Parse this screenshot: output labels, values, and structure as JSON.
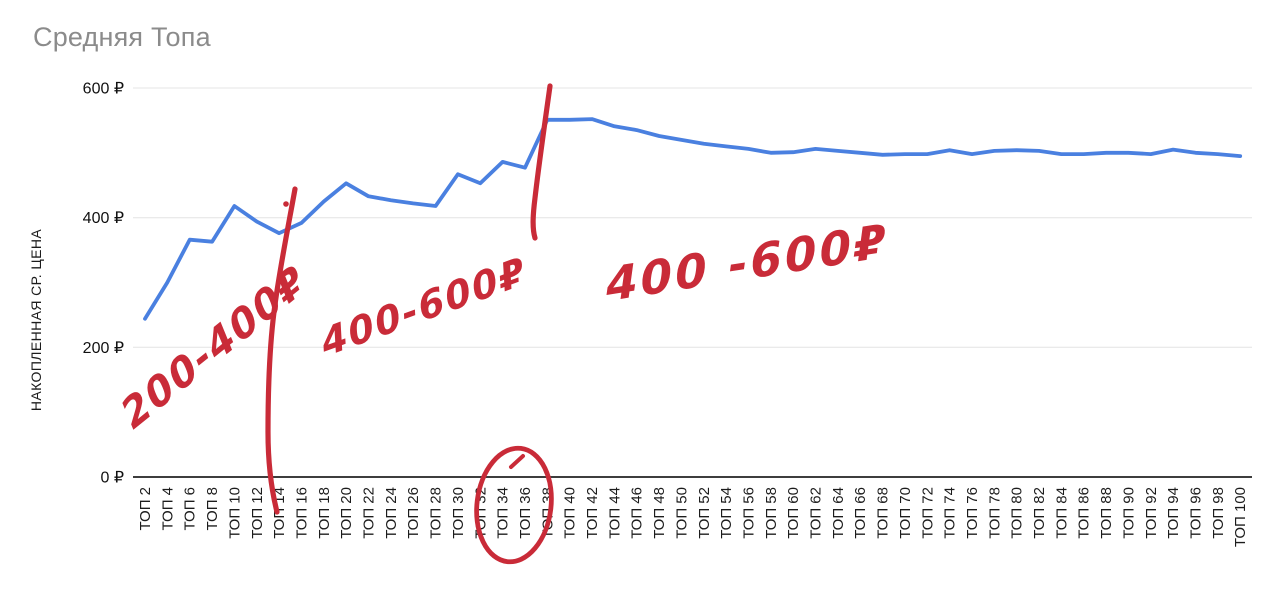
{
  "title": "Средняя Топа",
  "colors": {
    "series_blue": "#4a80e0",
    "annotation_red": "#c92b38",
    "title_gray": "#8b8b8b",
    "grid_gray": "#e4e4e4",
    "axis_dark": "#3d3d3d"
  },
  "chart_data": {
    "type": "line",
    "title": "Средняя Топа",
    "xlabel": "",
    "ylabel": "НАКОПЛЕННАЯ СР. ЦЕНА",
    "legend": "none",
    "grid": "horizontal",
    "ylim": [
      0,
      600
    ],
    "y_ticks": [
      {
        "v": 0,
        "label": "0 ₽"
      },
      {
        "v": 200,
        "label": "200 ₽"
      },
      {
        "v": 400,
        "label": "400 ₽"
      },
      {
        "v": 600,
        "label": "600 ₽"
      }
    ],
    "categories": [
      "ТОП 2",
      "ТОП 4",
      "ТОП 6",
      "ТОП 8",
      "ТОП 10",
      "ТОП 12",
      "ТОП 14",
      "ТОП 16",
      "ТОП 18",
      "ТОП 20",
      "ТОП 22",
      "ТОП 24",
      "ТОП 26",
      "ТОП 28",
      "ТОП 30",
      "ТОП 32",
      "ТОП 34",
      "ТОП 36",
      "ТОП 38",
      "ТОП 40",
      "ТОП 42",
      "ТОП 44",
      "ТОП 46",
      "ТОП 48",
      "ТОП 50",
      "ТОП 52",
      "ТОП 54",
      "ТОП 56",
      "ТОП 58",
      "ТОП 60",
      "ТОП 62",
      "ТОП 64",
      "ТОП 66",
      "ТОП 68",
      "ТОП 70",
      "ТОП 72",
      "ТОП 74",
      "ТОП 76",
      "ТОП 78",
      "ТОП 80",
      "ТОП 82",
      "ТОП 84",
      "ТОП 86",
      "ТОП 88",
      "ТОП 90",
      "ТОП 92",
      "ТОП 94",
      "ТОП 96",
      "ТОП 98",
      "ТОП 100"
    ],
    "values": [
      244,
      300,
      366,
      363,
      418,
      394,
      376,
      392,
      425,
      453,
      433,
      427,
      422,
      418,
      467,
      453,
      486,
      477,
      551,
      551,
      552,
      541,
      535,
      526,
      520,
      514,
      510,
      506,
      500,
      501,
      506,
      503,
      500,
      497,
      498,
      498,
      504,
      498,
      503,
      504,
      503,
      498,
      498,
      500,
      500,
      498,
      505,
      500,
      498,
      495
    ]
  },
  "annotations": {
    "color": "#c92b38",
    "items": [
      {
        "text": "200-400₽"
      },
      {
        "text": "400-600₽"
      },
      {
        "text": "400 -600₽"
      }
    ],
    "marks": [
      "hand-drawn-stroke-near-top14",
      "hand-drawn-stroke-near-top38",
      "circle-around-top34-top36-labels"
    ]
  }
}
